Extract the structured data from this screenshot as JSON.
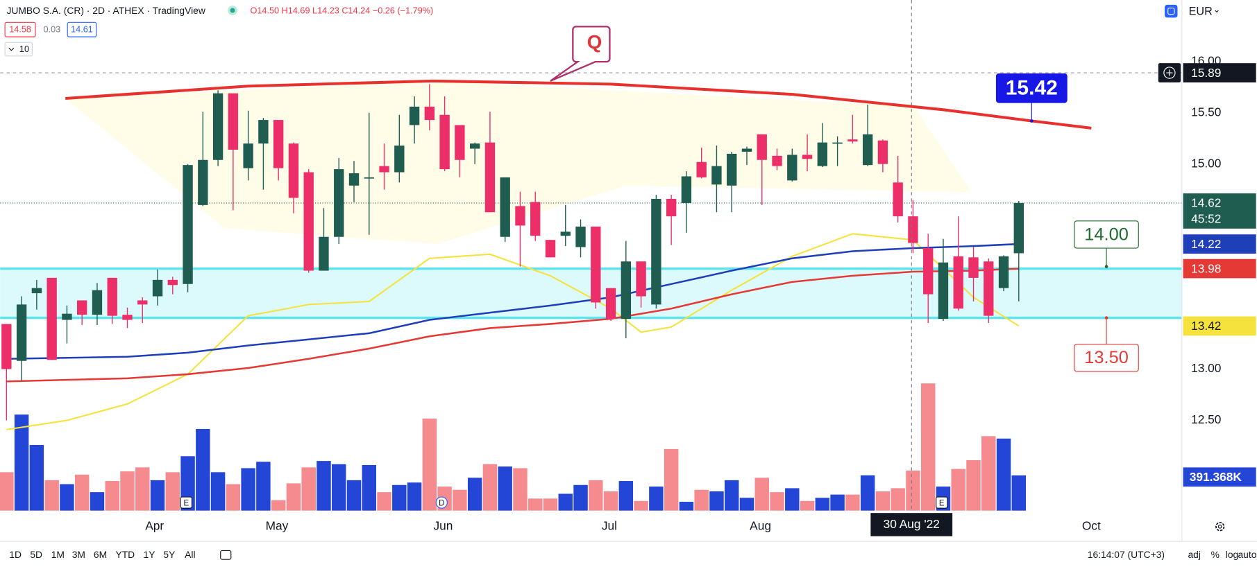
{
  "header": {
    "symbol": "JUMBO S.A. (CR) · 2D · ATHEX · TradingView",
    "ohlc": "O14.50 H14.69 L14.23 C14.24 −0.26 (−1.79%)",
    "bid": "14.58",
    "spread": "0.03",
    "ask": "14.61",
    "volume_toggle": "10",
    "currency": "EUR"
  },
  "chart_data": {
    "type": "candlestick",
    "xlim": [
      -0.42,
      77.77
    ],
    "ylim": [
      11.62,
      16.6
    ],
    "yticks": [
      {
        "value": 12.5,
        "label": "12.50"
      },
      {
        "value": 13,
        "label": "13.00"
      },
      {
        "value": 15,
        "label": "15.00"
      },
      {
        "value": 15.5,
        "label": "15.50"
      },
      {
        "value": 16,
        "label": "16.00"
      }
    ],
    "xticks": [
      {
        "value": 9.8,
        "label": "Apr"
      },
      {
        "value": 17.9,
        "label": "May"
      },
      {
        "value": 28.9,
        "label": "Jun"
      },
      {
        "value": 39.9,
        "label": "Jul"
      },
      {
        "value": 49.9,
        "label": "Aug"
      },
      {
        "value": 71.8,
        "label": "Oct"
      }
    ],
    "up_color": "#1f5d50",
    "down_color": "#ec2f68",
    "open": [
      13.44,
      13.08,
      13.74,
      13.89,
      13.48,
      13.67,
      13.53,
      13.89,
      13.53,
      13.67,
      13.71,
      13.87,
      13.83,
      14.6,
      15.04,
      15.69,
      14.96,
      15.2,
      15.43,
      15.2,
      14.92,
      13.96,
      14.29,
      14.79,
      14.87,
      14.98,
      14.92,
      15.38,
      15.56,
      15.48,
      15.38,
      15.15,
      15.21,
      14.29,
      14.59,
      14.63,
      14.26,
      14.3,
      14.19,
      14.39,
      13.79,
      13.49,
      14.05,
      13.63,
      14.66,
      14.62,
      15.02,
      14.8,
      14.79,
      15.12,
      15.29,
      15.08,
      14.84,
      15.09,
      14.98,
      15.2,
      15.24,
      14.99,
      15.23,
      14.82,
      14.49,
      14.18,
      13.49,
      14.1,
      14.09,
      14.05,
      13.79,
      14.13
    ],
    "high": [
      13.44,
      13.71,
      13.87,
      13.89,
      13.62,
      13.67,
      13.84,
      13.89,
      13.6,
      13.7,
      13.97,
      13.9,
      15.0,
      15.51,
      15.72,
      15.69,
      15.52,
      15.45,
      15.43,
      15.21,
      14.95,
      14.57,
      15.06,
      15.03,
      15.5,
      15.2,
      15.48,
      15.66,
      15.78,
      15.66,
      15.38,
      15.21,
      15.51,
      14.87,
      14.73,
      14.73,
      14.26,
      14.6,
      14.46,
      14.39,
      13.79,
      14.25,
      14.05,
      14.7,
      14.7,
      14.93,
      15.16,
      15.18,
      15.12,
      15.17,
      15.29,
      15.15,
      15.15,
      15.29,
      15.4,
      15.27,
      15.48,
      15.58,
      15.24,
      15.08,
      14.65,
      14.32,
      14.27,
      14.49,
      14.19,
      14.08,
      14.11,
      14.64
    ],
    "low": [
      12.5,
      12.89,
      13.58,
      13.09,
      13.25,
      13.43,
      13.43,
      13.44,
      13.4,
      13.45,
      13.62,
      13.73,
      13.75,
      14.59,
      14.98,
      14.55,
      14.84,
      14.75,
      14.84,
      14.52,
      13.94,
      13.96,
      14.22,
      14.63,
      14.31,
      14.75,
      14.82,
      15.2,
      15.33,
      14.93,
      14.87,
      15.0,
      14.53,
      14.24,
      14.0,
      14.25,
      14.09,
      14.2,
      14.09,
      13.59,
      13.47,
      13.3,
      13.6,
      13.59,
      14.21,
      14.33,
      14.86,
      14.53,
      14.53,
      14.99,
      14.6,
      14.94,
      14.83,
      14.93,
      14.97,
      14.98,
      15.2,
      14.98,
      14.92,
      14.43,
      14.13,
      13.45,
      13.47,
      13.57,
      13.66,
      13.45,
      13.76,
      13.66
    ],
    "close": [
      13.0,
      13.63,
      13.79,
      13.09,
      13.54,
      13.53,
      13.77,
      13.52,
      13.48,
      13.63,
      13.87,
      13.82,
      14.99,
      15.04,
      15.69,
      15.14,
      15.2,
      15.43,
      14.96,
      14.67,
      13.96,
      14.29,
      14.95,
      14.91,
      14.87,
      14.92,
      15.18,
      15.56,
      15.43,
      14.95,
      15.04,
      15.2,
      14.53,
      14.87,
      14.4,
      14.3,
      14.09,
      14.34,
      14.39,
      13.65,
      13.49,
      14.05,
      13.71,
      14.66,
      14.49,
      14.88,
      14.87,
      14.98,
      15.1,
      15.15,
      15.04,
      14.98,
      15.09,
      15.05,
      15.21,
      15.21,
      15.22,
      15.29,
      15.0,
      14.49,
      14.23,
      13.73,
      14.04,
      13.59,
      13.89,
      13.52,
      14.1,
      14.62
    ],
    "volume": {
      "vlim": [
        0,
        5680
      ],
      "up_color": "#2446d6",
      "down_color": "#f58a8f",
      "values": [
        427,
        1068,
        730,
        338,
        294,
        400,
        205,
        329,
        436,
        481,
        338,
        427,
        605,
        908,
        427,
        294,
        472,
        543,
        116,
        303,
        481,
        552,
        516,
        338,
        507,
        205,
        285,
        312,
        1024,
        267,
        231,
        365,
        516,
        490,
        472,
        134,
        134,
        187,
        285,
        338,
        214,
        329,
        107,
        267,
        685,
        98,
        231,
        214,
        338,
        142,
        365,
        205,
        249,
        107,
        142,
        178,
        178,
        392,
        214,
        249,
        445,
        1415,
        267,
        463,
        561,
        828,
        801,
        391.368
      ],
      "last_value_label": "391.368K"
    },
    "series": [
      {
        "color": "#f5e23c",
        "x": [
          0,
          4,
          8,
          12,
          16,
          20,
          24,
          28,
          32,
          36,
          40,
          42,
          44,
          48,
          52,
          56,
          60,
          64,
          67
        ],
        "values": [
          12.41,
          12.5,
          12.66,
          12.95,
          13.52,
          13.63,
          13.66,
          14.08,
          14.12,
          13.91,
          13.59,
          13.36,
          13.41,
          13.77,
          14.1,
          14.32,
          14.26,
          13.7,
          13.42
        ]
      },
      {
        "color": "#1e3fb8",
        "x": [
          0,
          8,
          12,
          16,
          20,
          24,
          28,
          32,
          36,
          40,
          44,
          48,
          52,
          56,
          60,
          64,
          67
        ],
        "values": [
          13.1,
          13.12,
          13.16,
          13.23,
          13.29,
          13.35,
          13.48,
          13.55,
          13.62,
          13.7,
          13.83,
          13.96,
          14.08,
          14.15,
          14.18,
          14.2,
          14.22
        ]
      },
      {
        "color": "#e53935",
        "x": [
          0,
          8,
          12,
          16,
          20,
          24,
          28,
          32,
          36,
          40,
          44,
          48,
          52,
          56,
          60,
          64,
          67
        ],
        "values": [
          12.88,
          12.91,
          12.95,
          13.01,
          13.1,
          13.2,
          13.32,
          13.4,
          13.44,
          13.49,
          13.59,
          13.73,
          13.85,
          13.91,
          13.95,
          13.96,
          13.98
        ]
      }
    ],
    "zone": {
      "low": 13.5,
      "high": 13.98,
      "color": "#5fe3ec"
    },
    "trendline": {
      "color": "#e8302c",
      "x": [
        3.9,
        16,
        28.2,
        40,
        52,
        62,
        67.9,
        71.8
      ],
      "values": [
        15.64,
        15.76,
        15.81,
        15.78,
        15.68,
        15.53,
        15.42,
        15.35
      ]
    },
    "pattern_label": {
      "text": "Q",
      "x": 36,
      "y": 15.81,
      "color": "#e0343a"
    },
    "callouts": [
      {
        "value": 15.42,
        "x": 67.85,
        "color": "#1717e6",
        "style": "filled",
        "placement": "above"
      },
      {
        "value": 14,
        "label": "14.00",
        "x": 72.8,
        "color": "#1e6b2e",
        "style": "outline",
        "placement": "above"
      },
      {
        "value": 13.5,
        "label": "13.50",
        "x": 72.8,
        "color": "#e53935",
        "style": "outline",
        "placement": "below"
      }
    ],
    "countdown": "45:52",
    "crosshair": {
      "x": 59.9,
      "x_label": "30 Aug '22",
      "y": 15.89
    },
    "events": [
      {
        "x": 11.9,
        "label": "E"
      },
      {
        "x": 28.8,
        "label": "D"
      },
      {
        "x": 61.9,
        "label": "E"
      }
    ]
  },
  "toolbar": {
    "ranges": [
      "1D",
      "5D",
      "1M",
      "3M",
      "6M",
      "YTD",
      "1Y",
      "5Y",
      "All"
    ],
    "clock": "16:14:07 (UTC+3)",
    "options": [
      "adj",
      "%",
      "log",
      "auto"
    ]
  }
}
